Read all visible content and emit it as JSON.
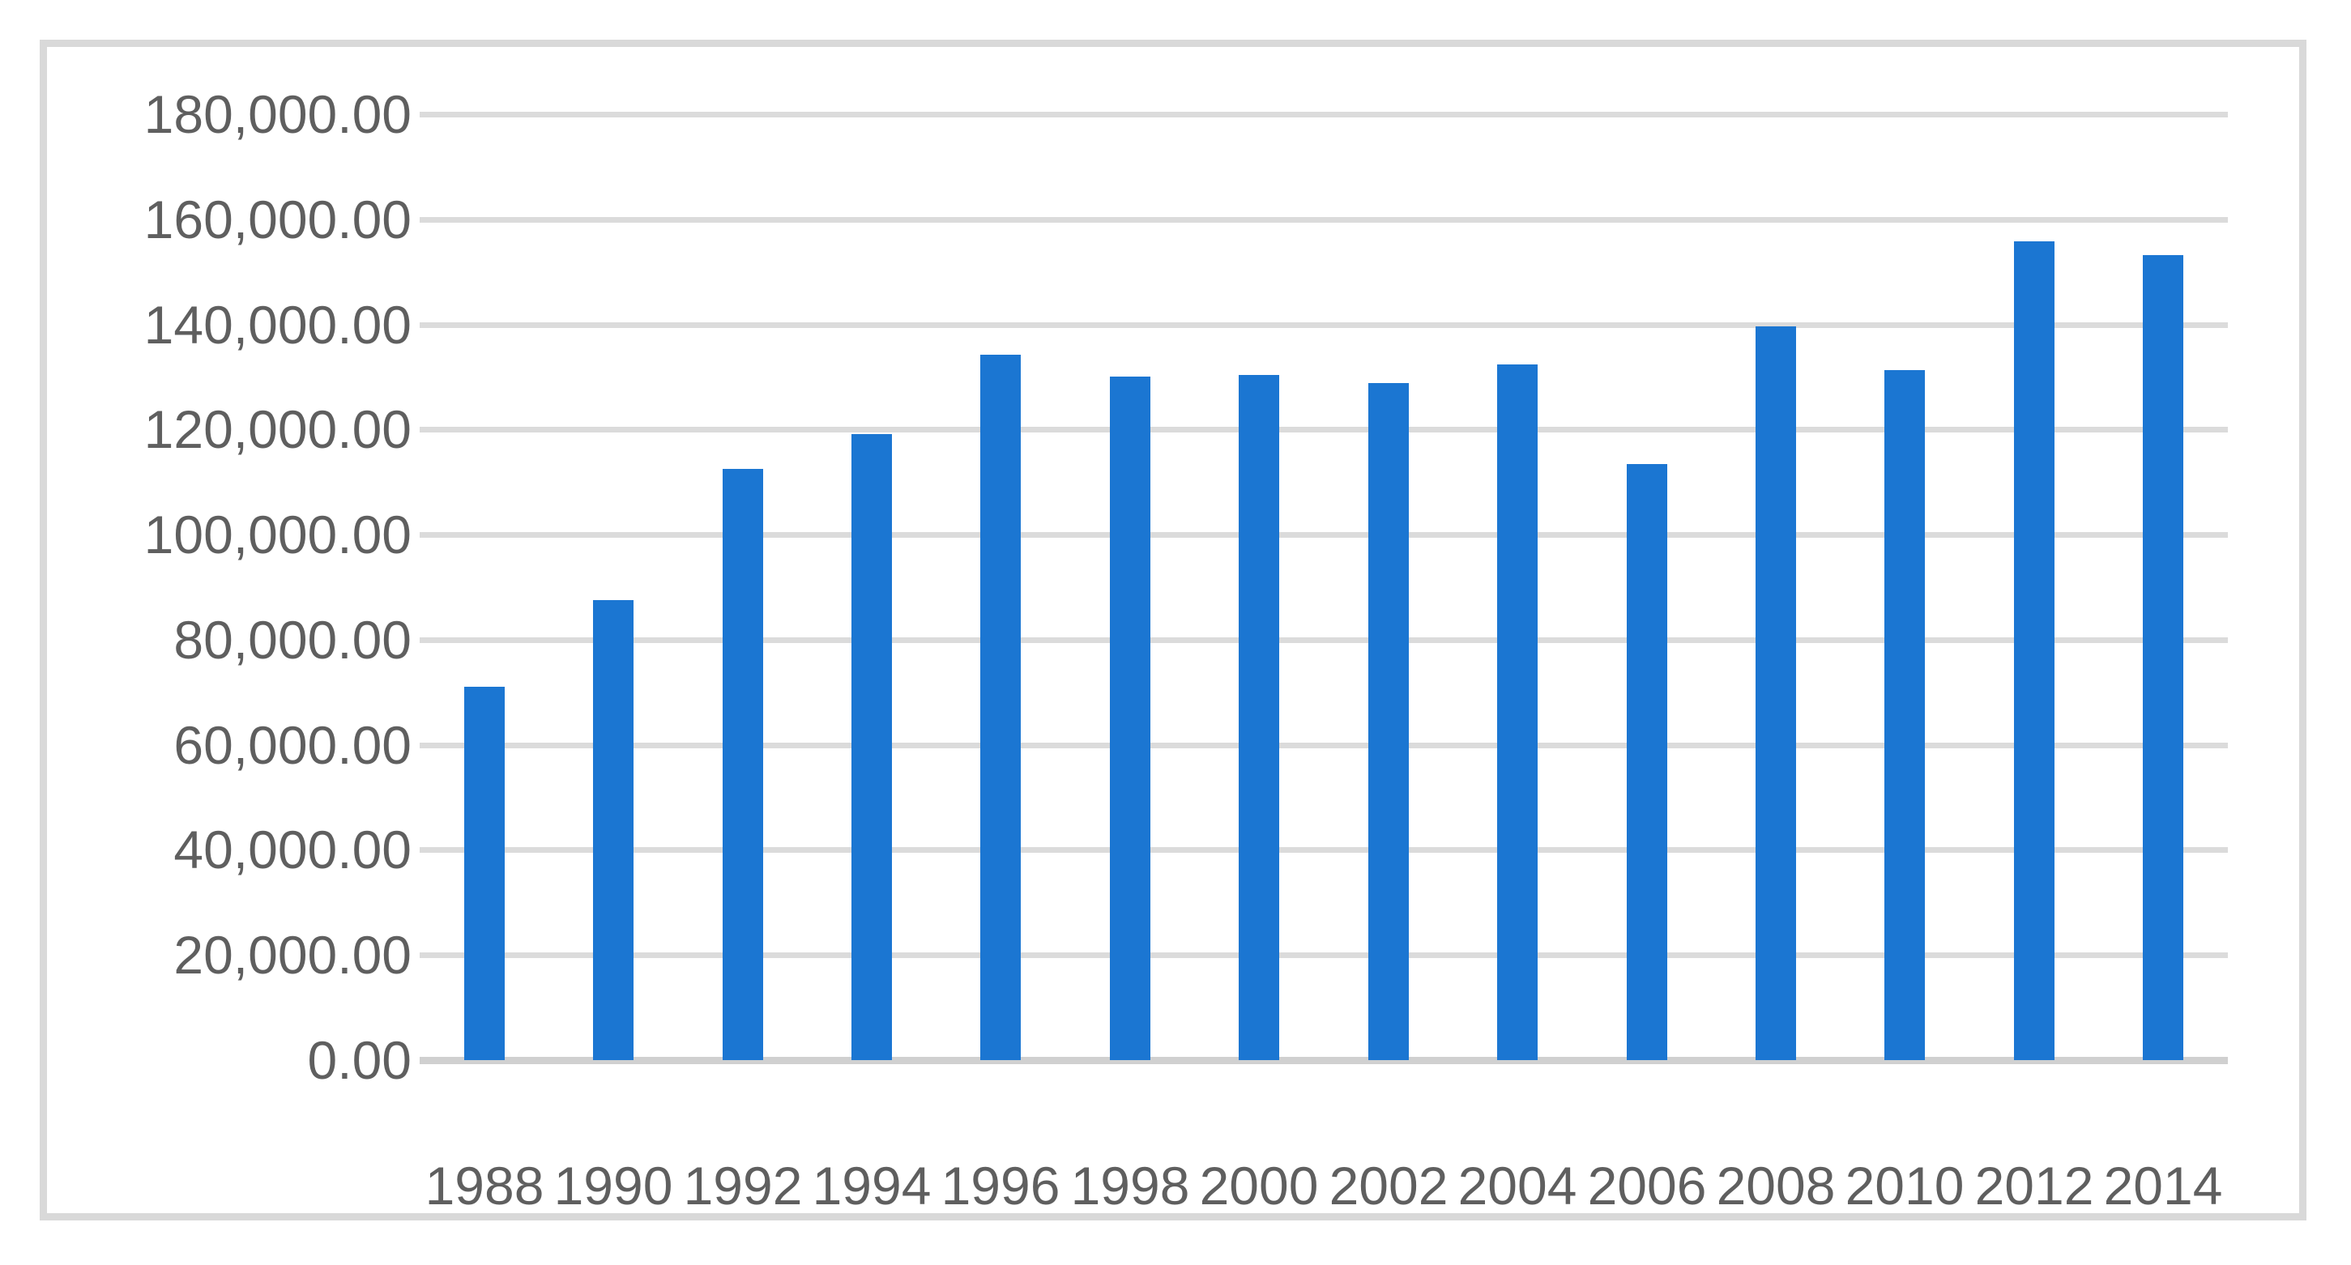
{
  "chart_data": {
    "type": "bar",
    "title": "",
    "xlabel": "",
    "ylabel": "",
    "categories": [
      "1988",
      "1990",
      "1992",
      "1994",
      "1996",
      "1998",
      "2000",
      "2002",
      "2004",
      "2006",
      "2008",
      "2010",
      "2012",
      "2014"
    ],
    "values": [
      71000,
      87500,
      112500,
      119100,
      134300,
      130100,
      130300,
      128800,
      132400,
      113400,
      139600,
      131300,
      155800,
      153200
    ],
    "ylim": [
      0,
      180000
    ],
    "ytick_interval": 20000,
    "yticks": [
      "180,000.00",
      "160,000.00",
      "140,000.00",
      "120,000.00",
      "100,000.00",
      "80,000.00",
      "60,000.00",
      "40,000.00",
      "20,000.00",
      "0.00"
    ],
    "grid": true,
    "legend": false,
    "colors": {
      "bar_fill": "#1B76D2",
      "gridline": "#DBDBDB",
      "axis_line": "#D0D0D0",
      "tick_label": "#5F5F5F",
      "chart_border": "#D9D9D9",
      "background": "#FFFFFF"
    }
  }
}
